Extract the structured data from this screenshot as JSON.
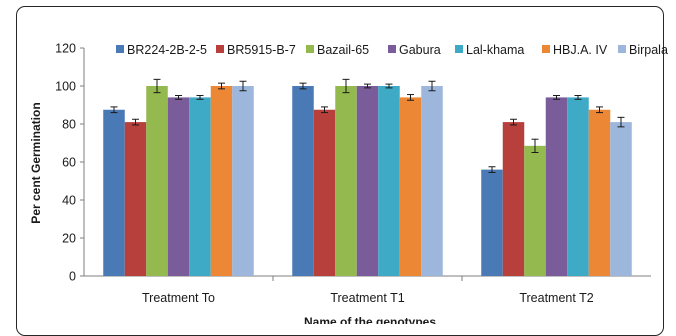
{
  "chart_data": {
    "type": "bar",
    "title": "",
    "xlabel": "Name of the genotypes",
    "ylabel": "Per cent Germination",
    "ylim": [
      0,
      120
    ],
    "yticks": [
      0,
      20,
      40,
      60,
      80,
      100,
      120
    ],
    "grid": false,
    "legend_position": "top",
    "categories": [
      "Treatment To",
      "Treatment T1",
      "Treatment T2"
    ],
    "series": [
      {
        "name": "BR224-2B-2-5",
        "color": "#4a7ab6",
        "values": [
          87.5,
          100,
          56
        ],
        "errors": [
          1.5,
          1.5,
          1.5
        ]
      },
      {
        "name": "BR5915-B-7",
        "color": "#b8403c",
        "values": [
          81,
          87.5,
          81
        ],
        "errors": [
          1.5,
          1.5,
          1.5
        ]
      },
      {
        "name": "Bazail-65",
        "color": "#93b94f",
        "values": [
          100,
          100,
          68.5
        ],
        "errors": [
          3.5,
          3.5,
          3.5
        ]
      },
      {
        "name": "Gabura",
        "color": "#7a5c9a",
        "values": [
          94,
          100,
          94
        ],
        "errors": [
          1,
          1,
          1
        ]
      },
      {
        "name": "Lal-khama",
        "color": "#3eaac5",
        "values": [
          94,
          100,
          94
        ],
        "errors": [
          1,
          1,
          1
        ]
      },
      {
        "name": "HBJ.A. IV",
        "color": "#ec8736",
        "values": [
          100,
          94,
          87.5
        ],
        "errors": [
          1.5,
          1.5,
          1.5
        ]
      },
      {
        "name": "Birpala",
        "color": "#9cb6dc",
        "values": [
          100,
          100,
          81
        ],
        "errors": [
          2.5,
          2.5,
          2.5
        ]
      }
    ]
  }
}
